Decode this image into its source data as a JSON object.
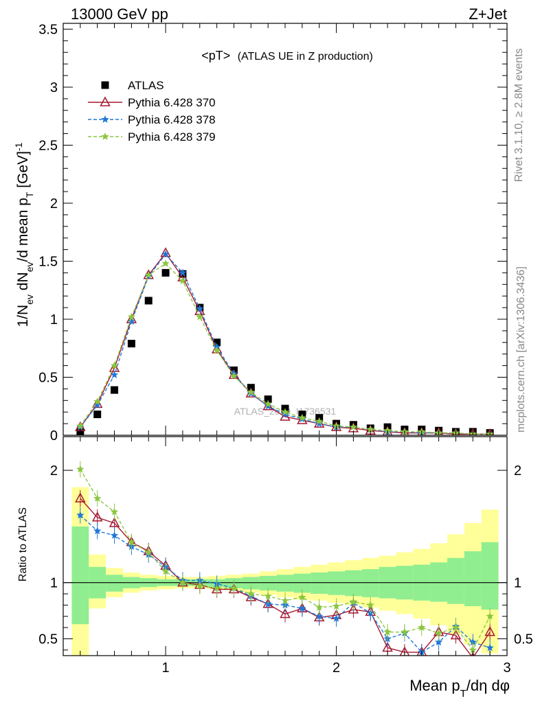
{
  "header": {
    "left": "13000 GeV pp",
    "right": "Z+Jet"
  },
  "side_labels": {
    "rivet": "Rivet 3.1.10, ≥ 2.8M events",
    "mcplots": "mcplots.cern.ch [arXiv:1306.3436]"
  },
  "chart_data": [
    {
      "type": "scatter",
      "panel": "main",
      "title": "<pT> (ATLAS UE in Z production)",
      "title_main": "<pT>",
      "title_sub": "(ATLAS UE in Z production)",
      "watermark": "ATLAS_2019_I1736531",
      "ylabel": "1/N_ev dN_ev/d mean p_T [GeV]^-1",
      "xlabel": "Mean p_T/dη dφ",
      "xlim": [
        0.4,
        3.0
      ],
      "ylim": [
        0,
        3.55
      ],
      "xticks": [
        1,
        2,
        3
      ],
      "yticks": [
        0,
        0.5,
        1,
        1.5,
        2,
        2.5,
        3,
        3.5
      ],
      "ytick_labels": [
        "0",
        "0.5",
        "1",
        "1.5",
        "2",
        "2.5",
        "3",
        "3.5"
      ],
      "legend_position": "top-left",
      "x": [
        0.5,
        0.6,
        0.7,
        0.8,
        0.9,
        1.0,
        1.1,
        1.2,
        1.3,
        1.4,
        1.5,
        1.6,
        1.7,
        1.8,
        1.9,
        2.0,
        2.1,
        2.2,
        2.3,
        2.4,
        2.5,
        2.6,
        2.7,
        2.8,
        2.9
      ],
      "series": [
        {
          "name": "ATLAS",
          "style": "data",
          "color": "#000000",
          "values": [
            0.03,
            0.18,
            0.39,
            0.79,
            1.16,
            1.4,
            1.39,
            1.1,
            0.8,
            0.56,
            0.41,
            0.31,
            0.23,
            0.18,
            0.15,
            0.1,
            0.09,
            0.06,
            0.07,
            0.05,
            0.05,
            0.04,
            0.03,
            0.03,
            0.02
          ]
        },
        {
          "name": "Pythia 6.428 370",
          "style": "triangle-solid",
          "color": "#a5172e",
          "values": [
            0.07,
            0.27,
            0.58,
            1.0,
            1.38,
            1.57,
            1.36,
            1.07,
            0.74,
            0.52,
            0.36,
            0.25,
            0.16,
            0.13,
            0.1,
            0.07,
            0.06,
            0.04,
            0.03,
            0.02,
            0.02,
            0.02,
            0.01,
            0.01,
            0.01
          ]
        },
        {
          "name": "Pythia 6.428 378",
          "style": "star-dashed",
          "color": "#1f78d8",
          "values": [
            0.07,
            0.26,
            0.52,
            0.98,
            1.37,
            1.56,
            1.4,
            1.09,
            0.76,
            0.53,
            0.36,
            0.25,
            0.18,
            0.14,
            0.1,
            0.07,
            0.07,
            0.05,
            0.03,
            0.03,
            0.02,
            0.02,
            0.02,
            0.01,
            0.01
          ]
        },
        {
          "name": "Pythia 6.428 379",
          "style": "star-dashed",
          "color": "#8cc63f",
          "values": [
            0.08,
            0.29,
            0.6,
            1.02,
            1.38,
            1.48,
            1.33,
            1.02,
            0.73,
            0.51,
            0.37,
            0.27,
            0.2,
            0.15,
            0.12,
            0.08,
            0.07,
            0.05,
            0.04,
            0.03,
            0.03,
            0.02,
            0.02,
            0.01,
            0.01
          ]
        }
      ]
    },
    {
      "type": "scatter",
      "panel": "ratio",
      "ylabel": "Ratio to ATLAS",
      "xlabel": "Mean p_T/dη dφ",
      "xlim": [
        0.4,
        3.0
      ],
      "ylim": [
        0.35,
        2.3
      ],
      "xticks": [
        1,
        2,
        3
      ],
      "yticks": [
        0.5,
        1,
        2
      ],
      "ytick_labels": [
        "0.5",
        "1",
        "2"
      ],
      "reference_line": 1,
      "x": [
        0.5,
        0.6,
        0.7,
        0.8,
        0.9,
        1.0,
        1.1,
        1.2,
        1.3,
        1.4,
        1.5,
        1.6,
        1.7,
        1.8,
        1.9,
        2.0,
        2.1,
        2.2,
        2.3,
        2.4,
        2.5,
        2.6,
        2.7,
        2.8,
        2.9
      ],
      "bands": {
        "stat": {
          "color": "#90ee90",
          "lo": [
            0.63,
            0.86,
            0.92,
            0.95,
            0.96,
            0.97,
            0.97,
            0.97,
            0.96,
            0.95,
            0.94,
            0.93,
            0.92,
            0.91,
            0.9,
            0.89,
            0.88,
            0.87,
            0.86,
            0.85,
            0.84,
            0.83,
            0.81,
            0.79,
            0.76
          ],
          "hi": [
            1.5,
            1.14,
            1.07,
            1.05,
            1.04,
            1.03,
            1.03,
            1.03,
            1.03,
            1.04,
            1.05,
            1.06,
            1.07,
            1.08,
            1.09,
            1.1,
            1.11,
            1.12,
            1.14,
            1.15,
            1.16,
            1.18,
            1.22,
            1.28,
            1.36
          ]
        },
        "total": {
          "color": "#ffff99",
          "lo": [
            0.2,
            0.77,
            0.87,
            0.91,
            0.93,
            0.94,
            0.95,
            0.95,
            0.94,
            0.93,
            0.91,
            0.89,
            0.87,
            0.85,
            0.84,
            0.82,
            0.8,
            0.78,
            0.75,
            0.72,
            0.68,
            0.62,
            0.54,
            0.45,
            0.37
          ],
          "hi": [
            1.85,
            1.25,
            1.13,
            1.09,
            1.07,
            1.06,
            1.05,
            1.05,
            1.06,
            1.07,
            1.08,
            1.1,
            1.12,
            1.14,
            1.16,
            1.18,
            1.2,
            1.22,
            1.24,
            1.27,
            1.3,
            1.35,
            1.43,
            1.53,
            1.65
          ]
        }
      },
      "series": [
        {
          "name": "Pythia 6.428 370",
          "style": "triangle-solid",
          "color": "#a5172e",
          "values": [
            1.75,
            1.58,
            1.53,
            1.36,
            1.28,
            1.15,
            1.0,
            0.98,
            0.94,
            0.94,
            0.87,
            0.81,
            0.72,
            0.77,
            0.69,
            0.71,
            0.76,
            0.74,
            0.42,
            0.38,
            0.38,
            0.56,
            0.53,
            0.33,
            0.56
          ]
        },
        {
          "name": "Pythia 6.428 378",
          "style": "star-dashed",
          "color": "#1f78d8",
          "values": [
            1.6,
            1.46,
            1.42,
            1.32,
            1.25,
            1.14,
            1.02,
            1.02,
            0.99,
            0.95,
            0.88,
            0.81,
            0.8,
            0.77,
            0.7,
            0.68,
            0.82,
            0.73,
            0.5,
            0.55,
            0.38,
            0.47,
            0.61,
            0.47,
            0.42
          ]
        },
        {
          "name": "Pythia 6.428 379",
          "style": "star-dashed",
          "color": "#8cc63f",
          "values": [
            2.01,
            1.75,
            1.63,
            1.36,
            1.27,
            1.1,
            1.0,
            0.97,
            0.95,
            0.95,
            0.9,
            0.88,
            0.84,
            0.87,
            0.78,
            0.79,
            0.83,
            0.8,
            0.56,
            0.56,
            0.6,
            0.55,
            0.6,
            0.4,
            0.7
          ]
        }
      ]
    }
  ]
}
